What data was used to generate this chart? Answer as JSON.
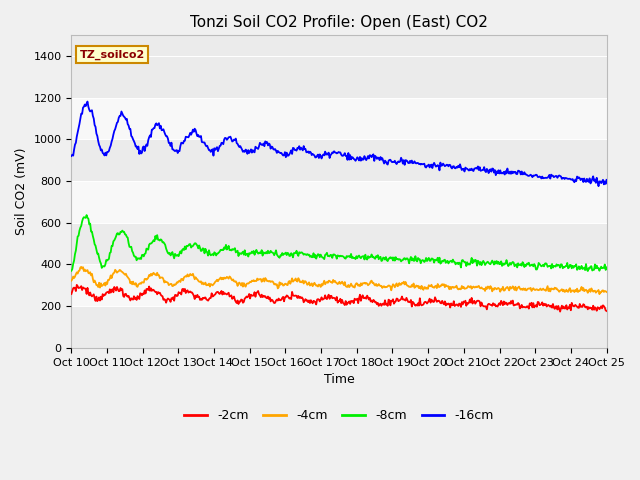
{
  "title": "Tonzi Soil CO2 Profile: Open (East) CO2",
  "ylabel": "Soil CO2 (mV)",
  "xlabel": "Time",
  "watermark_text": "TZ_soilco2",
  "ylim": [
    0,
    1500
  ],
  "yticks": [
    0,
    200,
    400,
    600,
    800,
    1000,
    1200,
    1400
  ],
  "colors": {
    "-2cm": "#ff0000",
    "-4cm": "#ffa500",
    "-8cm": "#00ee00",
    "-16cm": "#0000ff"
  },
  "legend_labels": [
    "-2cm",
    "-4cm",
    "-8cm",
    "-16cm"
  ],
  "background_color": "#f0f0f0",
  "plot_bg_light": "#f8f8f8",
  "plot_bg_dark": "#e8e8e8",
  "title_fontsize": 11,
  "label_fontsize": 9,
  "tick_fontsize": 8,
  "n_points": 600,
  "band_colors": [
    "#ebebeb",
    "#f8f8f8"
  ]
}
